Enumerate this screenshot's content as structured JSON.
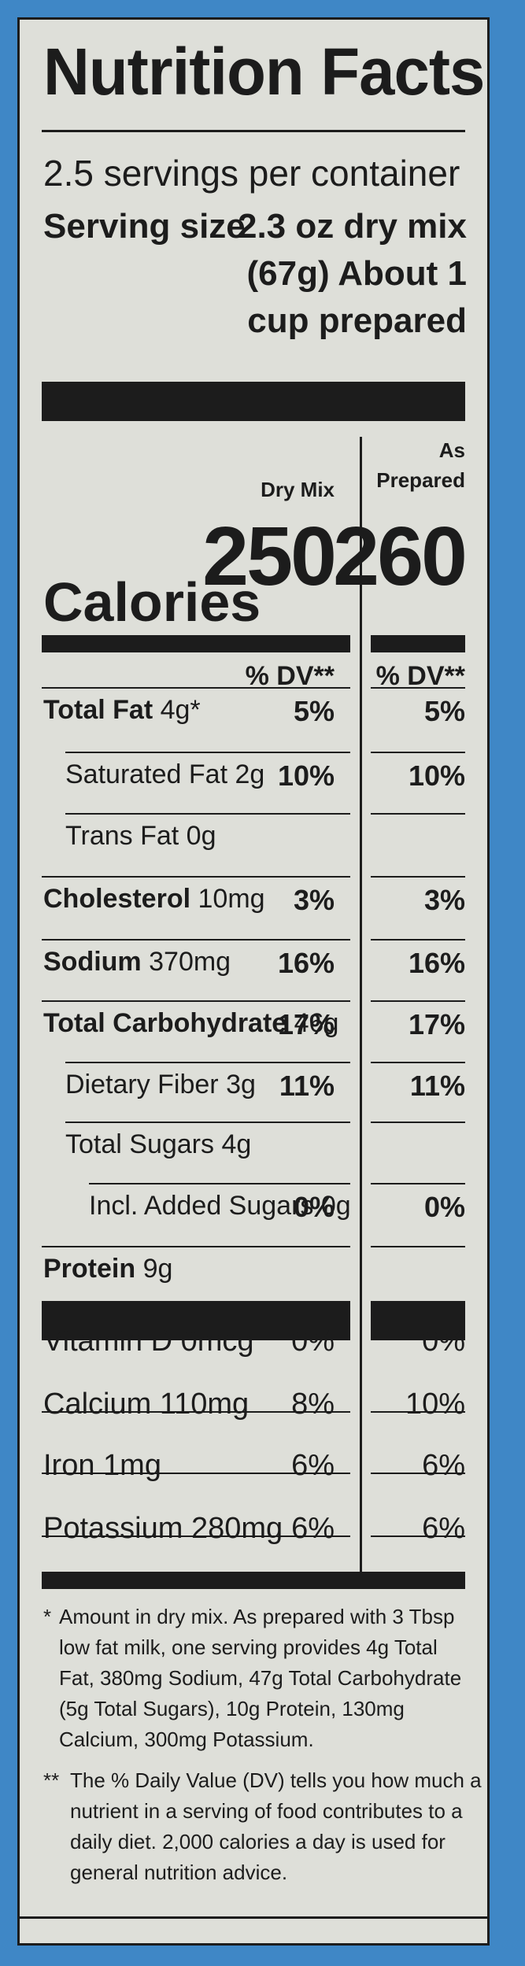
{
  "title": "Nutrition Facts",
  "servings_per_container": "2.5 servings per container",
  "serving_size": {
    "label": "Serving size",
    "line1": "2.3 oz dry mix",
    "line2": "(67g) About 1",
    "line3": "cup prepared"
  },
  "columns": {
    "dry": "Dry Mix",
    "prepared_1": "As",
    "prepared_2": "Prepared"
  },
  "calories": {
    "label": "Calories",
    "dry": "250",
    "prepared": "260"
  },
  "dv_header": {
    "dry": "% DV**",
    "prepared": "% DV**"
  },
  "nutrients": [
    {
      "name": "Total Fat",
      "amount": "4g*",
      "dry": "5%",
      "prepared": "5%"
    },
    {
      "name": "Saturated Fat",
      "amount": "2g",
      "dry": "10%",
      "prepared": "10%"
    },
    {
      "name": "Trans Fat",
      "amount": "0g",
      "dry": "",
      "prepared": ""
    },
    {
      "name": "Cholesterol",
      "amount": "10mg",
      "dry": "3%",
      "prepared": "3%"
    },
    {
      "name": "Sodium",
      "amount": "370mg",
      "dry": "16%",
      "prepared": "16%"
    },
    {
      "name": "Total Carbohydrate",
      "amount": "46g",
      "dry": "17%",
      "prepared": "17%"
    },
    {
      "name": "Dietary Fiber",
      "amount": "3g",
      "dry": "11%",
      "prepared": "11%"
    },
    {
      "name": "Total Sugars",
      "amount": "4g",
      "dry": "",
      "prepared": ""
    },
    {
      "name": "Incl. Added Sugars",
      "amount": "0g",
      "dry": "0%",
      "prepared": "0%"
    },
    {
      "name": "Protein",
      "amount": "9g",
      "dry": "",
      "prepared": ""
    }
  ],
  "vitamins": [
    {
      "name": "Vitamin D",
      "amount": "0mcg",
      "dry": "0%",
      "prepared": "0%"
    },
    {
      "name": "Calcium",
      "amount": "110mg",
      "dry": "8%",
      "prepared": "10%"
    },
    {
      "name": "Iron",
      "amount": "1mg",
      "dry": "6%",
      "prepared": "6%"
    },
    {
      "name": "Potassium",
      "amount": "280mg",
      "dry": "6%",
      "prepared": "6%"
    }
  ],
  "footnote1": {
    "marker": "*",
    "lines": [
      "Amount in dry mix. As prepared with 3 Tbsp",
      "low fat milk, one serving provides 4g Total",
      "Fat, 380mg Sodium, 47g Total Carbohydrate",
      "(5g Total Sugars), 10g Protein, 130mg",
      "Calcium, 300mg Potassium."
    ]
  },
  "footnote2": {
    "marker": "**",
    "lines": [
      "The % Daily Value (DV) tells you how much a",
      "nutrient in a serving of food contributes to a",
      "daily diet. 2,000 calories a day is used for",
      "general nutrition advice."
    ]
  },
  "colors": {
    "background": "#3f87c6",
    "panel": "#dedfd9",
    "ink": "#1c1c1c"
  }
}
